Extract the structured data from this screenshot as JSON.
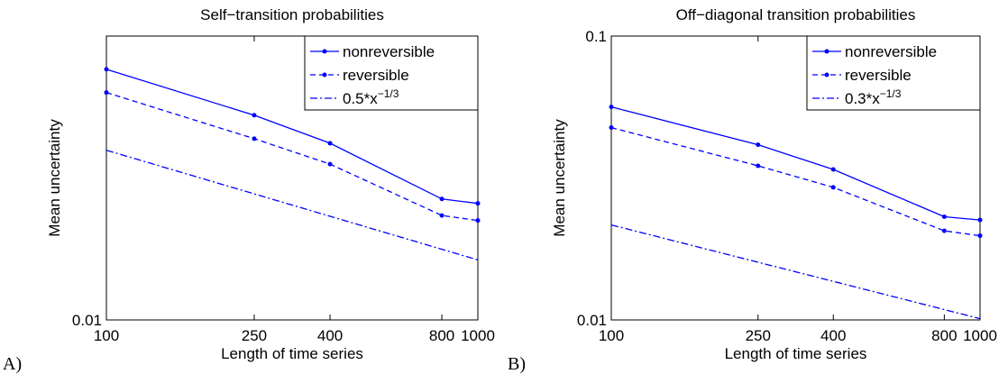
{
  "chart_data": [
    {
      "type": "line",
      "title": "Self−transition probabilities",
      "xlabel": "Length of time series",
      "ylabel": "Mean uncertainty",
      "panel_label": "A)",
      "xscale": "log",
      "yscale": "log",
      "xlim": [
        100,
        1000
      ],
      "ylim": [
        0.01,
        0.095
      ],
      "xticks": [
        100,
        250,
        400,
        800,
        1000
      ],
      "yticks": [
        0.01
      ],
      "legend": "upper right",
      "series": [
        {
          "name": "nonreversible",
          "color": "#0000ff",
          "linestyle": "solid",
          "marker": "dot",
          "x": [
            100,
            250,
            400,
            800,
            1000
          ],
          "values": [
            0.073,
            0.0507,
            0.0406,
            0.0261,
            0.0252
          ]
        },
        {
          "name": "reversible",
          "color": "#0000ff",
          "linestyle": "dashed",
          "marker": "dot",
          "x": [
            100,
            250,
            400,
            800,
            1000
          ],
          "values": [
            0.0607,
            0.0421,
            0.0344,
            0.0229,
            0.022
          ]
        },
        {
          "name": "0.5*x",
          "name_superscript": "−1/3",
          "color": "#0000ff",
          "linestyle": "dashdot",
          "marker": "none",
          "x": [
            100,
            1000
          ],
          "values": [
            0.0384,
            0.0161
          ]
        }
      ]
    },
    {
      "type": "line",
      "title": "Off−diagonal transition probabilities",
      "xlabel": "Length of time series",
      "ylabel": "Mean uncertainty",
      "panel_label": "B)",
      "xscale": "log",
      "yscale": "log",
      "xlim": [
        100,
        1000
      ],
      "ylim": [
        0.01,
        0.1
      ],
      "xticks": [
        100,
        250,
        400,
        800,
        1000
      ],
      "yticks": [
        0.01,
        0.1
      ],
      "legend": "upper right",
      "series": [
        {
          "name": "nonreversible",
          "color": "#0000ff",
          "linestyle": "solid",
          "marker": "dot",
          "x": [
            100,
            250,
            400,
            800,
            1000
          ],
          "values": [
            0.0563,
            0.0414,
            0.0339,
            0.0231,
            0.0225
          ]
        },
        {
          "name": "reversible",
          "color": "#0000ff",
          "linestyle": "dashed",
          "marker": "dot",
          "x": [
            100,
            250,
            400,
            800,
            1000
          ],
          "values": [
            0.0476,
            0.0349,
            0.0293,
            0.0206,
            0.0198
          ]
        },
        {
          "name": "0.3*x",
          "name_superscript": "−1/3",
          "color": "#0000ff",
          "linestyle": "dashdot",
          "marker": "none",
          "x": [
            100,
            1000
          ],
          "values": [
            0.0216,
            0.0101
          ]
        }
      ]
    }
  ]
}
